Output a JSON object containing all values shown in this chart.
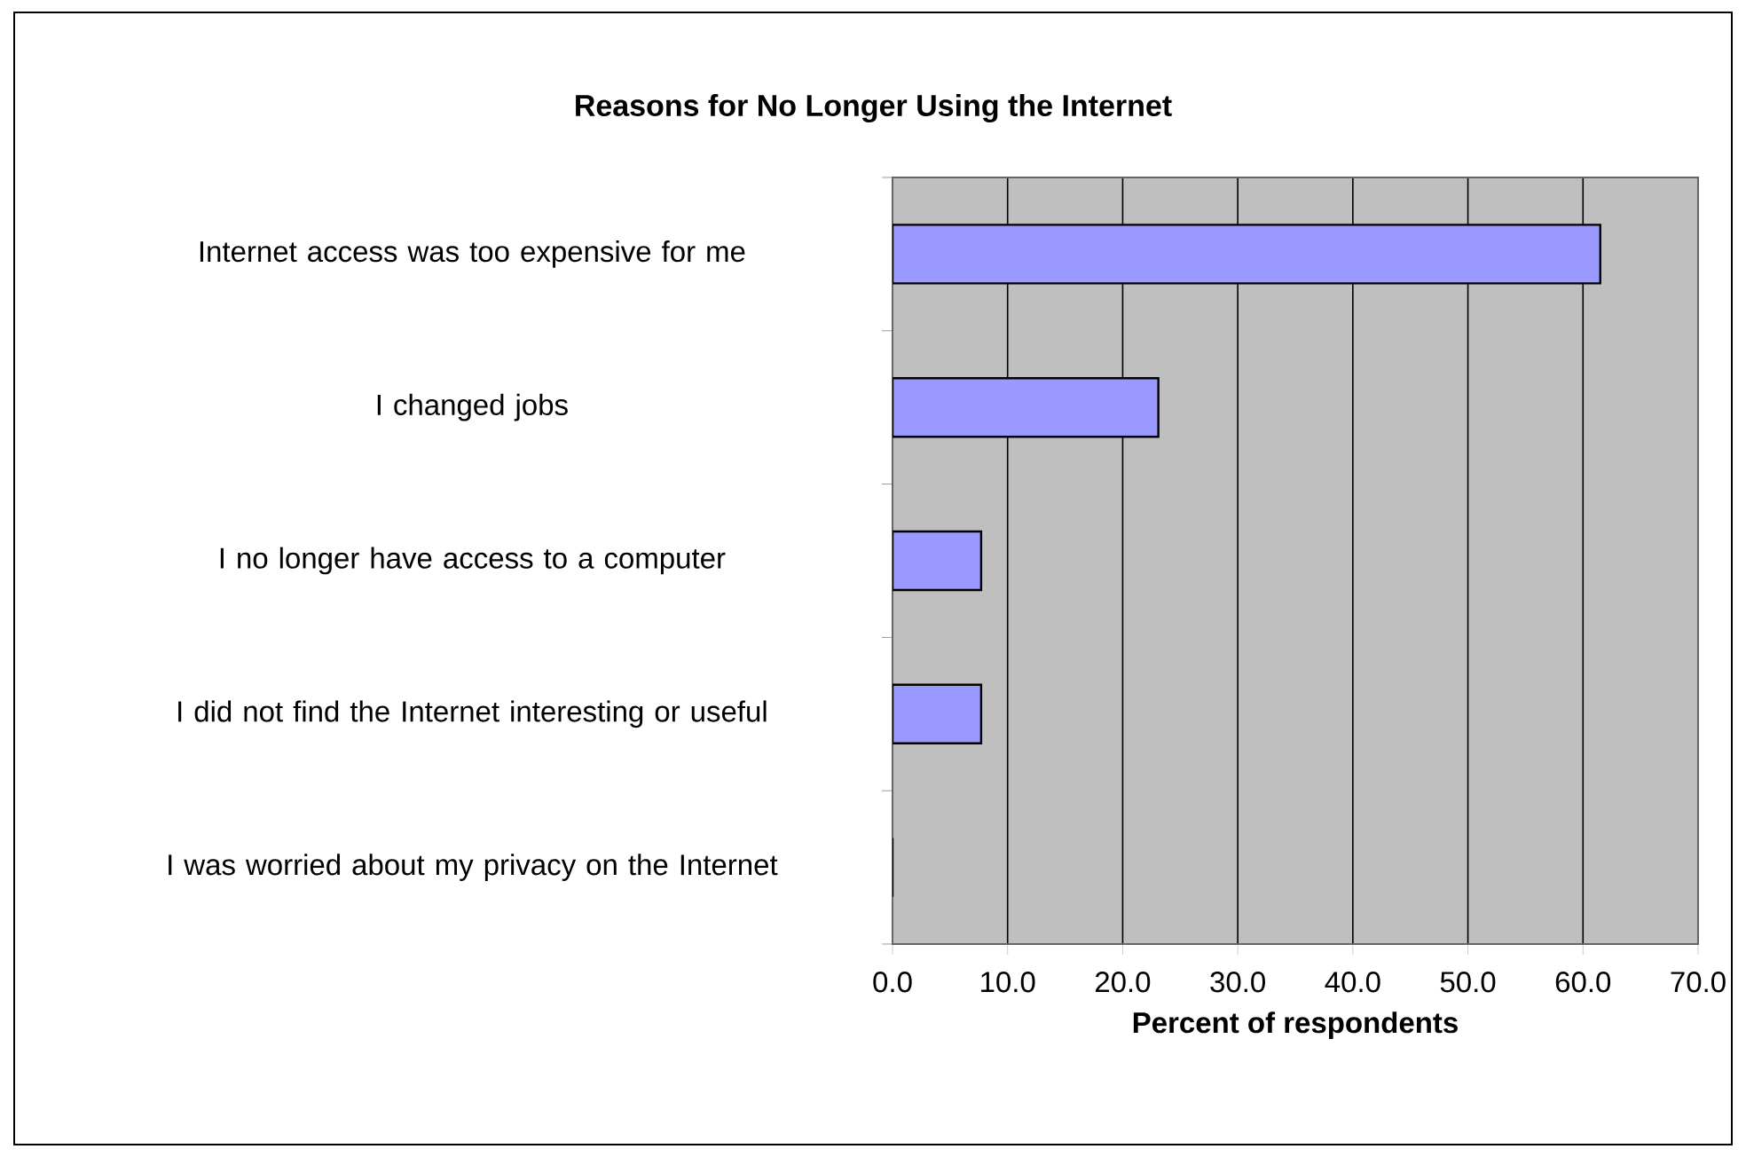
{
  "chart_data": {
    "type": "bar",
    "orientation": "horizontal",
    "title": "Reasons for No Longer Using the Internet",
    "xlabel": "Percent of respondents",
    "categories": [
      "Internet access was too expensive for me",
      "I changed jobs",
      "I no longer have access to a computer",
      "I did not find the Internet interesting or useful",
      "I was worried about my privacy on the Internet"
    ],
    "values": [
      61.5,
      23.1,
      7.7,
      7.7,
      0
    ],
    "color": "#9999ff",
    "xlim": [
      0,
      70
    ],
    "xticks": [
      {
        "value": 0,
        "label": "0.0"
      },
      {
        "value": 10,
        "label": "10.0"
      },
      {
        "value": 20,
        "label": "20.0"
      },
      {
        "value": 30,
        "label": "30.0"
      },
      {
        "value": 40,
        "label": "40.0"
      },
      {
        "value": 50,
        "label": "50.0"
      },
      {
        "value": 60,
        "label": "60.0"
      },
      {
        "value": 70,
        "label": "70.0"
      }
    ],
    "grid": "x"
  }
}
